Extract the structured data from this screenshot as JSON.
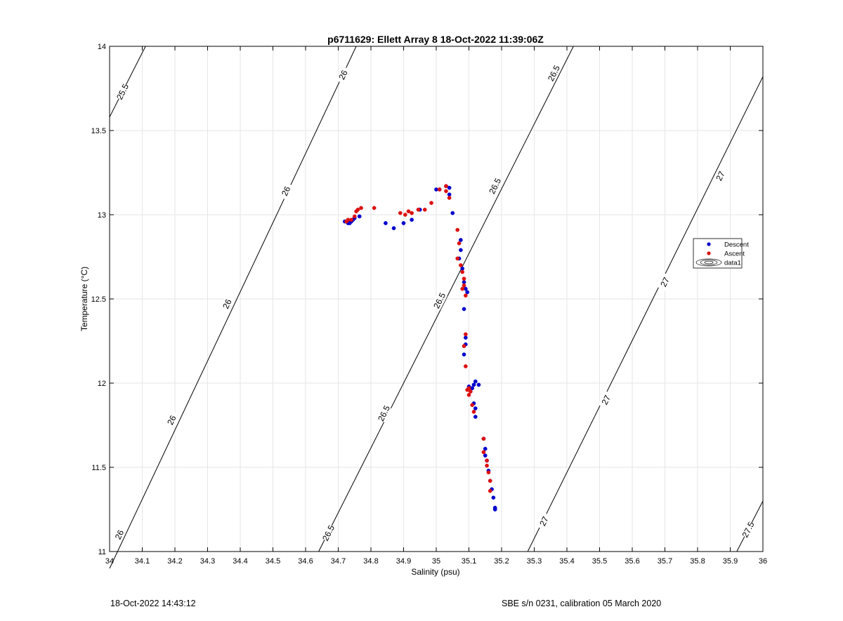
{
  "chart_data": {
    "type": "scatter",
    "title": "p6711629: Ellett Array 8 18-Oct-2022 11:39:06Z",
    "xlabel": "Salinity (psu)",
    "ylabel": "Temperature (°C)",
    "xlim": [
      34,
      36
    ],
    "ylim": [
      11,
      14
    ],
    "xticks": [
      34,
      34.1,
      34.2,
      34.3,
      34.4,
      34.5,
      34.6,
      34.7,
      34.8,
      34.9,
      35,
      35.1,
      35.2,
      35.3,
      35.4,
      35.5,
      35.6,
      35.7,
      35.8,
      35.9,
      36
    ],
    "yticks": [
      11,
      11.5,
      12,
      12.5,
      13,
      13.5,
      14
    ],
    "grid": true,
    "legend_position": "right",
    "legend": [
      "Descent",
      "Ascent",
      "data1"
    ],
    "colors": {
      "descent": "#0000cc",
      "ascent": "#dd1111",
      "axes": "#000000",
      "grid": "#e6e6e6",
      "contour": "#000000"
    },
    "series": [
      {
        "name": "Descent",
        "color": "#0000cc",
        "points": [
          [
            34.72,
            12.96
          ],
          [
            34.73,
            12.95
          ],
          [
            34.735,
            12.95
          ],
          [
            34.74,
            12.96
          ],
          [
            34.745,
            12.97
          ],
          [
            34.75,
            12.98
          ],
          [
            34.765,
            12.99
          ],
          [
            34.845,
            12.95
          ],
          [
            34.87,
            12.92
          ],
          [
            34.9,
            12.95
          ],
          [
            34.925,
            12.97
          ],
          [
            34.95,
            13.03
          ],
          [
            35.0,
            13.15
          ],
          [
            35.01,
            13.15
          ],
          [
            35.03,
            13.17
          ],
          [
            35.04,
            13.16
          ],
          [
            35.04,
            13.12
          ],
          [
            35.05,
            13.01
          ],
          [
            35.075,
            12.85
          ],
          [
            35.075,
            12.79
          ],
          [
            35.07,
            12.74
          ],
          [
            35.08,
            12.68
          ],
          [
            35.085,
            12.6
          ],
          [
            35.09,
            12.56
          ],
          [
            35.095,
            12.54
          ],
          [
            35.085,
            12.44
          ],
          [
            35.09,
            12.27
          ],
          [
            35.09,
            12.23
          ],
          [
            35.085,
            12.17
          ],
          [
            35.1,
            11.98
          ],
          [
            35.11,
            11.97
          ],
          [
            35.115,
            11.99
          ],
          [
            35.12,
            12.01
          ],
          [
            35.13,
            11.99
          ],
          [
            35.115,
            11.88
          ],
          [
            35.12,
            11.85
          ],
          [
            35.12,
            11.8
          ],
          [
            35.145,
            11.67
          ],
          [
            35.15,
            11.61
          ],
          [
            35.15,
            11.57
          ],
          [
            35.155,
            11.54
          ],
          [
            35.16,
            11.48
          ],
          [
            35.165,
            11.42
          ],
          [
            35.17,
            11.37
          ],
          [
            35.175,
            11.32
          ],
          [
            35.18,
            11.26
          ],
          [
            35.18,
            11.25
          ]
        ]
      },
      {
        "name": "Ascent",
        "color": "#dd1111",
        "points": [
          [
            34.725,
            12.96
          ],
          [
            34.73,
            12.97
          ],
          [
            34.74,
            12.97
          ],
          [
            34.75,
            12.99
          ],
          [
            34.755,
            13.02
          ],
          [
            34.76,
            13.03
          ],
          [
            34.77,
            13.04
          ],
          [
            34.81,
            13.04
          ],
          [
            34.89,
            13.01
          ],
          [
            34.905,
            13.0
          ],
          [
            34.915,
            13.02
          ],
          [
            34.925,
            13.01
          ],
          [
            34.945,
            13.03
          ],
          [
            34.965,
            13.03
          ],
          [
            34.985,
            13.07
          ],
          [
            35.01,
            13.15
          ],
          [
            35.03,
            13.17
          ],
          [
            35.03,
            13.14
          ],
          [
            35.04,
            13.1
          ],
          [
            35.065,
            12.91
          ],
          [
            35.07,
            12.83
          ],
          [
            35.065,
            12.74
          ],
          [
            35.075,
            12.7
          ],
          [
            35.08,
            12.66
          ],
          [
            35.085,
            12.62
          ],
          [
            35.085,
            12.58
          ],
          [
            35.08,
            12.56
          ],
          [
            35.09,
            12.52
          ],
          [
            35.09,
            12.29
          ],
          [
            35.085,
            12.22
          ],
          [
            35.09,
            12.1
          ],
          [
            35.095,
            11.96
          ],
          [
            35.1,
            11.97
          ],
          [
            35.105,
            11.95
          ],
          [
            35.1,
            11.93
          ],
          [
            35.11,
            11.87
          ],
          [
            35.115,
            11.83
          ],
          [
            35.145,
            11.67
          ],
          [
            35.145,
            11.59
          ],
          [
            35.155,
            11.54
          ],
          [
            35.155,
            11.51
          ],
          [
            35.16,
            11.47
          ],
          [
            35.165,
            11.42
          ],
          [
            35.165,
            11.36
          ]
        ]
      }
    ],
    "contours": [
      {
        "label": "25.5",
        "s1": 34.0,
        "t1": 13.58,
        "s2": 34.11,
        "t2": 14.0,
        "label_pos": [
          34.04,
          13.73
        ]
      },
      {
        "label": "26",
        "s1": 34.0,
        "t1": 10.9,
        "s2": 34.755,
        "t2": 14.0,
        "label_pos": [
          [
            34.03,
            11.1
          ],
          [
            34.19,
            11.78
          ],
          [
            34.36,
            12.47
          ],
          [
            34.54,
            13.14
          ],
          [
            34.715,
            13.83
          ]
        ]
      },
      {
        "label": "26.5",
        "s1": 34.64,
        "t1": 11.0,
        "s2": 35.42,
        "t2": 14.0,
        "label_pos": [
          [
            34.67,
            11.11
          ],
          [
            34.84,
            11.82
          ],
          [
            35.01,
            12.49
          ],
          [
            35.18,
            13.17
          ],
          [
            35.36,
            13.84
          ]
        ]
      },
      {
        "label": "27",
        "s1": 35.28,
        "t1": 11.0,
        "s2": 36.0,
        "t2": 13.82,
        "label_pos": [
          [
            35.33,
            11.18
          ],
          [
            35.52,
            11.9
          ],
          [
            35.7,
            12.6
          ],
          [
            35.87,
            13.23
          ]
        ]
      },
      {
        "label": "27.5",
        "s1": 35.92,
        "t1": 11.0,
        "s2": 36.0,
        "t2": 11.3,
        "label_pos": [
          35.955,
          11.13
        ]
      }
    ]
  },
  "footer": {
    "left": "18-Oct-2022 14:43:12",
    "right": "SBE s/n 0231, calibration 05 March 2020"
  }
}
